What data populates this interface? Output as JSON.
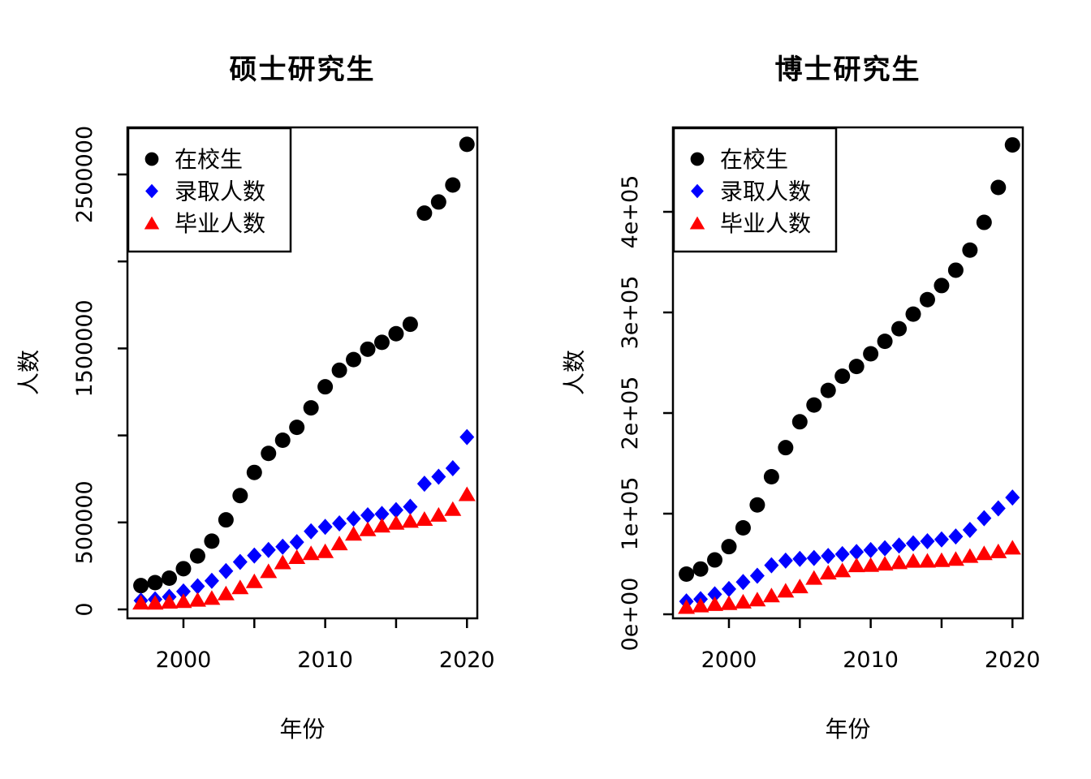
{
  "figure": {
    "background": "#ffffff",
    "text_color": "#000000"
  },
  "chart_data": [
    {
      "type": "scatter",
      "title": "硕士研究生",
      "xlabel": "年份",
      "ylabel": "人数",
      "grid": false,
      "legend": {
        "position": "topleft",
        "entries": [
          "在校生",
          "录取人数",
          "毕业人数"
        ]
      },
      "x": [
        1997,
        1998,
        1999,
        2000,
        2001,
        2002,
        2003,
        2004,
        2005,
        2006,
        2007,
        2008,
        2009,
        2010,
        2011,
        2012,
        2013,
        2014,
        2015,
        2016,
        2017,
        2018,
        2019,
        2020
      ],
      "xlim": [
        1996.05,
        2020.73
      ],
      "ylim": [
        -51300,
        2770500
      ],
      "x_ticks": {
        "values": [
          2000,
          2005,
          2010,
          2015,
          2020
        ],
        "labels": [
          "2000",
          "",
          "2010",
          "",
          "2020"
        ]
      },
      "y_ticks": {
        "values": [
          0,
          500000,
          1000000,
          1500000,
          2000000,
          2500000
        ],
        "labels": [
          "0",
          "500000",
          "",
          "1500000",
          "",
          "2500000"
        ]
      },
      "series": [
        {
          "name": "在校生",
          "marker": "circle",
          "color": "#000000",
          "values": [
            136800,
            153900,
            179500,
            234000,
            307300,
            392300,
            514600,
            654300,
            787300,
            896700,
            972500,
            1046400,
            1158600,
            1279500,
            1374500,
            1436000,
            1495700,
            1535000,
            1584700,
            1639100,
            2277700,
            2341800,
            2439500,
            2673000
          ]
        },
        {
          "name": "录取人数",
          "marker": "diamond",
          "color": "#0000ff",
          "values": [
            50900,
            57500,
            72300,
            103400,
            133100,
            164300,
            220200,
            273000,
            309800,
            341900,
            360600,
            386600,
            449000,
            474400,
            494600,
            521300,
            540900,
            548700,
            570700,
            589800,
            722200,
            762500,
            811300,
            990500
          ]
        },
        {
          "name": "毕业人数",
          "marker": "triangle",
          "color": "#ff0000",
          "values": [
            39000,
            38200,
            44500,
            47700,
            55200,
            66100,
            92300,
            127300,
            162000,
            219700,
            270400,
            301100,
            323200,
            334600,
            379400,
            434800,
            460500,
            481600,
            497700,
            508900,
            520000,
            543700,
            577100,
            662400
          ]
        }
      ]
    },
    {
      "type": "scatter",
      "title": "博士研究生",
      "xlabel": "年份",
      "ylabel": "人数",
      "grid": false,
      "legend": {
        "position": "topleft",
        "entries": [
          "在校生",
          "录取人数",
          "毕业人数"
        ]
      },
      "x": [
        1997,
        1998,
        1999,
        2000,
        2001,
        2002,
        2003,
        2004,
        2005,
        2006,
        2007,
        2008,
        2009,
        2010,
        2011,
        2012,
        2013,
        2014,
        2015,
        2016,
        2017,
        2018,
        2019,
        2020
      ],
      "xlim": [
        1996.05,
        2020.73
      ],
      "ylim": [
        -4030,
        483900
      ],
      "x_ticks": {
        "values": [
          2000,
          2005,
          2010,
          2015,
          2020
        ],
        "labels": [
          "2000",
          "",
          "2010",
          "",
          "2020"
        ]
      },
      "y_ticks": {
        "values": [
          0,
          100000,
          200000,
          300000,
          400000
        ],
        "labels": [
          "0e+00",
          "1e+05",
          "2e+05",
          "3e+05",
          "4e+05"
        ]
      },
      "series": [
        {
          "name": "在校生",
          "marker": "circle",
          "color": "#000000",
          "values": [
            39900,
            45000,
            54000,
            67200,
            85900,
            108700,
            136700,
            165600,
            191300,
            208000,
            222500,
            236600,
            246300,
            258900,
            271300,
            283800,
            298300,
            312700,
            326700,
            342000,
            361900,
            389500,
            424200,
            466500
          ]
        },
        {
          "name": "录取人数",
          "marker": "diamond",
          "color": "#0000ff",
          "values": [
            12800,
            15000,
            19900,
            25100,
            32100,
            38300,
            48700,
            53300,
            55000,
            56000,
            58000,
            59800,
            61900,
            63800,
            65600,
            68400,
            70500,
            72600,
            74400,
            77300,
            83900,
            95500,
            105200,
            116000
          ]
        },
        {
          "name": "毕业人数",
          "marker": "triangle",
          "color": "#ff0000",
          "values": [
            7300,
            8800,
            10200,
            11100,
            12600,
            14700,
            18800,
            23500,
            27700,
            36200,
            41400,
            43700,
            48700,
            49000,
            50300,
            51700,
            53100,
            53200,
            53800,
            55000,
            58000,
            60700,
            62600,
            66200
          ]
        }
      ]
    }
  ]
}
